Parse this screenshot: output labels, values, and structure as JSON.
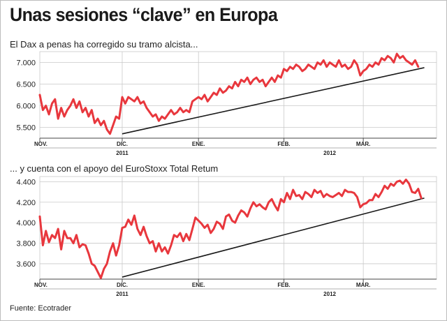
{
  "title": "Unas sesiones “clave” en Europa",
  "source": "Fuente: Ecotrader",
  "colors": {
    "series": "#e8373d",
    "trend": "#1a1a1a",
    "grid": "#c9c9c9",
    "background": "#ffffff"
  },
  "chart_data": [
    {
      "type": "line",
      "title": "El Dax a penas ha corregido su tramo alcista...",
      "ylim": [
        5250,
        7250
      ],
      "yticks": [
        5500,
        6000,
        6500,
        7000
      ],
      "ytick_labels": [
        "5.500",
        "6.000",
        "6.500",
        "7.000"
      ],
      "xlim": [
        0,
        130
      ],
      "x_month_ticks": [
        {
          "x": 0,
          "label": "NOV."
        },
        {
          "x": 27,
          "label": "DIC."
        },
        {
          "x": 52,
          "label": "ENE."
        },
        {
          "x": 80,
          "label": "FEB."
        },
        {
          "x": 106,
          "label": "MAR."
        }
      ],
      "x_year_ticks": [
        {
          "x": 27,
          "label": "2011"
        },
        {
          "x": 95,
          "label": "2012"
        }
      ],
      "grid": true,
      "series": [
        {
          "values": [
            6250,
            5900,
            6000,
            5800,
            6050,
            6150,
            5700,
            5950,
            5750,
            5900,
            6000,
            6150,
            5950,
            6100,
            5850,
            5950,
            5750,
            5900,
            5600,
            5700,
            5550,
            5650,
            5450,
            5350,
            5550,
            5750,
            5700,
            6200,
            6050,
            6200,
            6150,
            6100,
            6200,
            6050,
            6100,
            5950,
            5850,
            5750,
            5800,
            5650,
            5750,
            5700,
            5800,
            5900,
            5800,
            5850,
            5950,
            5850,
            5900,
            5850,
            6100,
            6150,
            6200,
            6150,
            6250,
            6100,
            6200,
            6300,
            6250,
            6400,
            6300,
            6350,
            6450,
            6400,
            6550,
            6450,
            6600,
            6550,
            6650,
            6500,
            6600,
            6650,
            6550,
            6600,
            6450,
            6550,
            6650,
            6550,
            6700,
            6650,
            6850,
            6800,
            6900,
            6850,
            6950,
            6900,
            6800,
            6850,
            6950,
            6900,
            6850,
            7000,
            6950,
            7050,
            6900,
            7000,
            6950,
            6900,
            7050,
            6900,
            6950,
            6850,
            6900,
            7050,
            6950,
            6700,
            6800,
            6850,
            6950,
            6900,
            7000,
            6950,
            7100,
            7050,
            7150,
            7100,
            7000,
            7200,
            7100,
            7150,
            7050,
            7000,
            6950,
            7050,
            6900
          ],
          "x_start": 0,
          "x_step": 1
        }
      ],
      "trendline": {
        "x": [
          27,
          126
        ],
        "y": [
          5350,
          6880
        ]
      }
    },
    {
      "type": "line",
      "title": "... y cuenta con el apoyo del EuroStoxx Total Retum",
      "ylim": [
        3450,
        4450
      ],
      "yticks": [
        3600,
        3800,
        4000,
        4200,
        4400
      ],
      "ytick_labels": [
        "3.600",
        "3.800",
        "4.000",
        "4.200",
        "4.400"
      ],
      "xlim": [
        0,
        130
      ],
      "x_month_ticks": [
        {
          "x": 0,
          "label": "NOV."
        },
        {
          "x": 27,
          "label": "DIC."
        },
        {
          "x": 52,
          "label": "ENE."
        },
        {
          "x": 80,
          "label": "FEB."
        },
        {
          "x": 106,
          "label": "MAR."
        }
      ],
      "x_year_ticks": [
        {
          "x": 27,
          "label": "2011"
        },
        {
          "x": 95,
          "label": "2012"
        }
      ],
      "grid": true,
      "series": [
        {
          "values": [
            4060,
            3780,
            3920,
            3810,
            3880,
            3850,
            3940,
            3740,
            3920,
            3850,
            3850,
            3800,
            3880,
            3760,
            3790,
            3780,
            3700,
            3600,
            3580,
            3520,
            3460,
            3550,
            3600,
            3720,
            3800,
            3680,
            3780,
            3950,
            3960,
            4030,
            3980,
            4070,
            3940,
            3880,
            3960,
            3870,
            3800,
            3820,
            3720,
            3800,
            3720,
            3760,
            3700,
            3780,
            3880,
            3860,
            3900,
            3820,
            3890,
            3830,
            3940,
            4050,
            4020,
            3990,
            3950,
            3980,
            3900,
            3940,
            4010,
            3990,
            3940,
            4060,
            4080,
            4020,
            4000,
            4070,
            4120,
            4100,
            4060,
            4140,
            4200,
            4160,
            4180,
            4150,
            4130,
            4200,
            4230,
            4170,
            4120,
            4230,
            4200,
            4290,
            4230,
            4320,
            4260,
            4270,
            4230,
            4300,
            4280,
            4250,
            4320,
            4290,
            4310,
            4250,
            4280,
            4260,
            4250,
            4270,
            4290,
            4260,
            4320,
            4300,
            4300,
            4290,
            4250,
            4150,
            4180,
            4190,
            4220,
            4220,
            4280,
            4250,
            4300,
            4360,
            4330,
            4380,
            4360,
            4400,
            4410,
            4380,
            4420,
            4380,
            4300,
            4290,
            4330,
            4240
          ],
          "x_start": 0,
          "x_step": 1
        }
      ],
      "trendline": {
        "x": [
          27,
          126
        ],
        "y": [
          3470,
          4240
        ]
      }
    }
  ]
}
